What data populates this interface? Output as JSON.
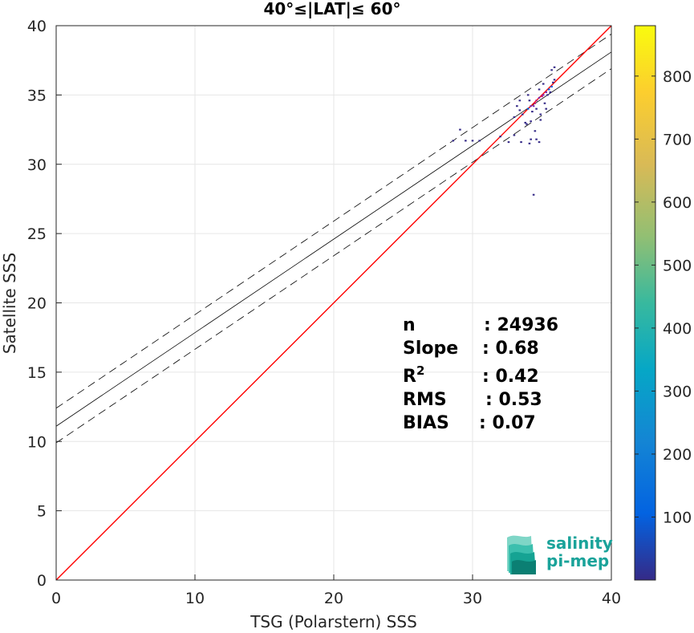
{
  "chart_data": {
    "type": "heatmap",
    "title": "40°≤|LAT|≤ 60°",
    "xlabel": "TSG (Polarstern) SSS",
    "ylabel": "Satellite SSS",
    "xlim": [
      0,
      40
    ],
    "ylim": [
      0,
      40
    ],
    "xticks": [
      "0",
      "10",
      "20",
      "30",
      "40"
    ],
    "yticks": [
      "0",
      "5",
      "10",
      "15",
      "20",
      "25",
      "30",
      "35",
      "40"
    ],
    "grid": true,
    "colorbar": {
      "range": [
        0,
        880
      ],
      "ticks": [
        "100",
        "200",
        "300",
        "400",
        "500",
        "600",
        "700",
        "800"
      ],
      "colormap": "parula"
    },
    "lines": {
      "identity": {
        "intercept": 0,
        "slope": 1,
        "color": "#ff0000"
      },
      "regression": {
        "intercept": 11.1,
        "slope": 0.675,
        "color": "#000000"
      },
      "regression_upper": {
        "intercept": 12.4,
        "slope": 0.675,
        "color": "#000000",
        "style": "dashed"
      },
      "regression_lower": {
        "intercept": 9.9,
        "slope": 0.675,
        "color": "#000000",
        "style": "dashed"
      }
    },
    "stats": [
      {
        "label": "n",
        "value": ": 24936"
      },
      {
        "label": "Slope",
        "value": ": 0.68"
      },
      {
        "label": "R",
        "sup": "2",
        "value": ": 0.42"
      },
      {
        "label": "RMS",
        "value": ": 0.53"
      },
      {
        "label": "BIAS",
        "value": ": 0.07"
      }
    ],
    "density_cells": [
      {
        "x": 34.0,
        "y": 34.0,
        "count": 60
      },
      {
        "x": 34.2,
        "y": 34.2,
        "count": 120
      },
      {
        "x": 34.4,
        "y": 34.2,
        "count": 150
      },
      {
        "x": 34.5,
        "y": 34.4,
        "count": 200
      },
      {
        "x": 34.6,
        "y": 34.6,
        "count": 180
      },
      {
        "x": 34.8,
        "y": 34.8,
        "count": 160
      },
      {
        "x": 35.0,
        "y": 34.9,
        "count": 220
      },
      {
        "x": 35.1,
        "y": 35.0,
        "count": 140
      },
      {
        "x": 35.3,
        "y": 35.2,
        "count": 120
      },
      {
        "x": 35.5,
        "y": 35.4,
        "count": 90
      },
      {
        "x": 35.7,
        "y": 35.6,
        "count": 60
      },
      {
        "x": 35.8,
        "y": 35.9,
        "count": 40
      },
      {
        "x": 34.3,
        "y": 33.8,
        "count": 30
      },
      {
        "x": 34.6,
        "y": 34.0,
        "count": 35
      },
      {
        "x": 34.1,
        "y": 34.6,
        "count": 25
      },
      {
        "x": 33.6,
        "y": 33.6,
        "count": 15
      },
      {
        "x": 33.4,
        "y": 33.9,
        "count": 10
      },
      {
        "x": 33.2,
        "y": 34.2,
        "count": 8
      },
      {
        "x": 33.0,
        "y": 33.4,
        "count": 8
      },
      {
        "x": 33.8,
        "y": 33.0,
        "count": 10
      },
      {
        "x": 34.9,
        "y": 33.6,
        "count": 12
      },
      {
        "x": 35.2,
        "y": 34.4,
        "count": 30
      },
      {
        "x": 35.4,
        "y": 35.0,
        "count": 45
      },
      {
        "x": 35.6,
        "y": 35.2,
        "count": 30
      },
      {
        "x": 34.0,
        "y": 35.0,
        "count": 12
      },
      {
        "x": 34.8,
        "y": 35.4,
        "count": 20
      },
      {
        "x": 35.1,
        "y": 35.8,
        "count": 10
      },
      {
        "x": 35.9,
        "y": 36.1,
        "count": 8
      },
      {
        "x": 35.7,
        "y": 36.8,
        "count": 5
      },
      {
        "x": 35.9,
        "y": 37.0,
        "count": 5
      },
      {
        "x": 33.9,
        "y": 32.9,
        "count": 8
      },
      {
        "x": 34.5,
        "y": 32.4,
        "count": 5
      },
      {
        "x": 34.9,
        "y": 33.2,
        "count": 6
      },
      {
        "x": 33.0,
        "y": 32.1,
        "count": 6
      },
      {
        "x": 32.6,
        "y": 31.6,
        "count": 5
      },
      {
        "x": 32.0,
        "y": 32.0,
        "count": 5
      },
      {
        "x": 30.5,
        "y": 31.7,
        "count": 4
      },
      {
        "x": 30.0,
        "y": 31.7,
        "count": 4
      },
      {
        "x": 29.5,
        "y": 31.7,
        "count": 4
      },
      {
        "x": 28.6,
        "y": 31.7,
        "count": 4
      },
      {
        "x": 29.1,
        "y": 32.5,
        "count": 4
      },
      {
        "x": 33.5,
        "y": 31.6,
        "count": 5
      },
      {
        "x": 34.2,
        "y": 31.8,
        "count": 5
      },
      {
        "x": 34.6,
        "y": 31.8,
        "count": 5
      },
      {
        "x": 34.8,
        "y": 31.6,
        "count": 5
      },
      {
        "x": 34.1,
        "y": 31.5,
        "count": 5
      },
      {
        "x": 34.4,
        "y": 27.8,
        "count": 4
      },
      {
        "x": 33.4,
        "y": 34.6,
        "count": 8
      },
      {
        "x": 34.2,
        "y": 33.1,
        "count": 10
      },
      {
        "x": 35.3,
        "y": 34.0,
        "count": 10
      }
    ]
  },
  "logo": {
    "line1": "salinity",
    "line2": "pi-mep"
  }
}
